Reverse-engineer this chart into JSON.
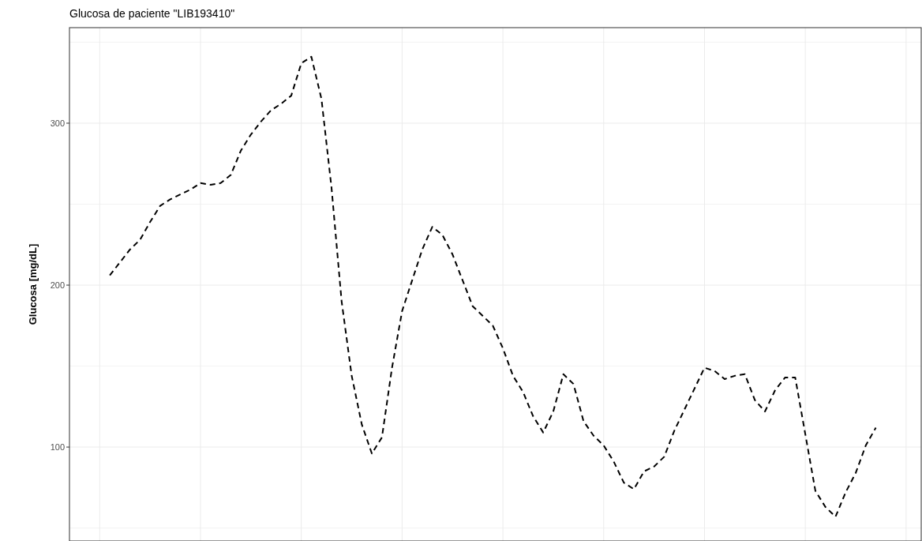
{
  "chart_data": {
    "type": "line",
    "title": "Glucosa de paciente \"LIB193410\"",
    "ylabel": "Glucosa [mg/dL]",
    "categories": [
      null,
      null,
      null,
      null,
      null,
      null,
      null,
      null,
      null,
      null,
      null,
      null,
      null,
      null,
      null,
      null,
      null,
      null,
      null,
      null,
      null,
      null,
      null,
      null,
      null,
      null,
      null,
      null,
      null,
      null,
      null,
      null,
      null,
      null,
      null,
      null,
      null,
      null,
      null,
      null,
      null,
      null,
      null,
      null,
      null,
      null,
      null,
      null,
      null,
      null,
      null,
      null,
      null,
      null,
      null,
      null,
      null,
      null,
      null,
      null,
      null,
      null,
      null,
      null,
      null,
      null,
      null,
      null,
      null,
      null,
      null,
      null,
      null,
      null,
      null,
      null,
      null
    ],
    "series": [
      {
        "color": "#000000",
        "values": [
          206,
          214,
          222,
          228,
          239,
          249,
          253,
          256,
          259,
          263,
          262,
          263,
          268,
          283,
          293,
          301,
          308,
          312,
          317,
          337,
          341,
          315,
          260,
          190,
          144,
          114,
          96,
          106,
          149,
          184,
          203,
          222,
          236,
          231,
          219,
          203,
          187,
          181,
          175,
          161,
          144,
          134,
          119,
          109,
          122,
          145,
          139,
          116,
          107,
          101,
          91,
          78,
          74,
          85,
          88,
          94,
          110,
          123,
          136,
          149,
          147,
          142,
          144,
          145,
          129,
          122,
          135,
          143,
          143,
          108,
          73,
          63,
          57,
          72,
          84,
          101,
          112
        ]
      }
    ],
    "ylim": [
      42,
      359
    ],
    "yticks": [
      {
        "value": 50,
        "label": null
      },
      100,
      {
        "value": 150,
        "label": null
      },
      200,
      {
        "value": 250,
        "label": null
      },
      300,
      {
        "value": 350,
        "label": null
      }
    ],
    "grid": true,
    "marker": "none",
    "line_style": "dashed"
  }
}
